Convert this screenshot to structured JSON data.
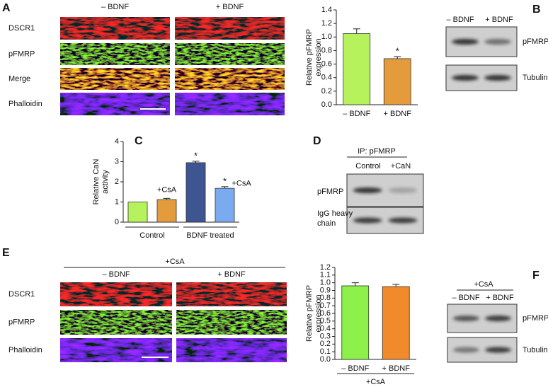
{
  "panel_labels": [
    "A",
    "B",
    "C",
    "D",
    "E",
    "F"
  ],
  "panel_a": {
    "columns": [
      "– BDNF",
      "+ BDNF"
    ],
    "rows": [
      "DSCR1",
      "pFMRP",
      "Merge",
      "Phalloidin"
    ]
  },
  "panel_b": {
    "columns": [
      "– BDNF",
      "+ BDNF"
    ],
    "rows": [
      "pFMRP",
      "Tubulin"
    ]
  },
  "panel_d": {
    "title": "IP: pFMRP",
    "columns": [
      "Control",
      "+CaN"
    ],
    "rows": [
      "pFMRP",
      [
        "IgG heavy",
        "chain"
      ]
    ]
  },
  "panel_e": {
    "condition": "+CsA",
    "columns": [
      "– BDNF",
      "+ BDNF"
    ],
    "rows": [
      "DSCR1",
      "pFMRP",
      "Phalloidin"
    ]
  },
  "panel_f": {
    "condition": "+CsA",
    "columns": [
      "– BDNF",
      "+ BDNF"
    ],
    "rows": [
      "pFMRP",
      "Tubulin"
    ]
  },
  "chart_data": [
    {
      "type": "bar",
      "ylabel": [
        "Relative pFMRP",
        "expression"
      ],
      "categories": [
        "– BDNF",
        "+ BDNF"
      ],
      "values": [
        1.05,
        0.68
      ],
      "errors": [
        0.07,
        0.03
      ],
      "colors": [
        "#b6f25c",
        "#e39b3b"
      ],
      "stars": [
        null,
        "*"
      ],
      "ylim": [
        0,
        1.4
      ],
      "yticks": [
        {
          "value": 0,
          "label": "0.0"
        },
        0.2,
        0.4,
        0.6,
        0.8,
        {
          "value": 1,
          "label": "1.0"
        },
        1.2,
        1.4
      ]
    },
    {
      "type": "bar",
      "ylabel": [
        "Relative CaN",
        "activity"
      ],
      "categories": [
        null,
        null,
        null,
        null
      ],
      "values": [
        1.0,
        1.12,
        2.95,
        1.68
      ],
      "errors": [
        null,
        0.06,
        0.07,
        0.08
      ],
      "colors": [
        "#b6f25c",
        "#e39b3b",
        "#3d5590",
        "#7aaaf0"
      ],
      "stars": [
        null,
        null,
        "*",
        "*"
      ],
      "bar_labels": [
        null,
        "+CsA",
        null,
        "+CsA"
      ],
      "groups": [
        "Control",
        "BDNF treated"
      ],
      "ylim": [
        0,
        4
      ],
      "yticks": [
        0,
        1,
        2,
        3,
        4
      ]
    },
    {
      "type": "bar",
      "ylabel": [
        "Relative pFMRP",
        "expression"
      ],
      "categories": [
        "– BDNF",
        "+ BDNF"
      ],
      "values": [
        0.96,
        0.95
      ],
      "errors": [
        0.04,
        0.03
      ],
      "colors": [
        "#8ef04a",
        "#f08a2a"
      ],
      "groups": [
        "+CsA"
      ],
      "ylim": [
        0,
        1.2
      ],
      "yticks": [
        {
          "value": 0,
          "label": "0.0"
        },
        0.1,
        0.2,
        0.3,
        0.4,
        0.5,
        0.6,
        0.7,
        0.8,
        0.9,
        {
          "value": 1,
          "label": "1.0"
        },
        1.1,
        1.2
      ]
    }
  ]
}
